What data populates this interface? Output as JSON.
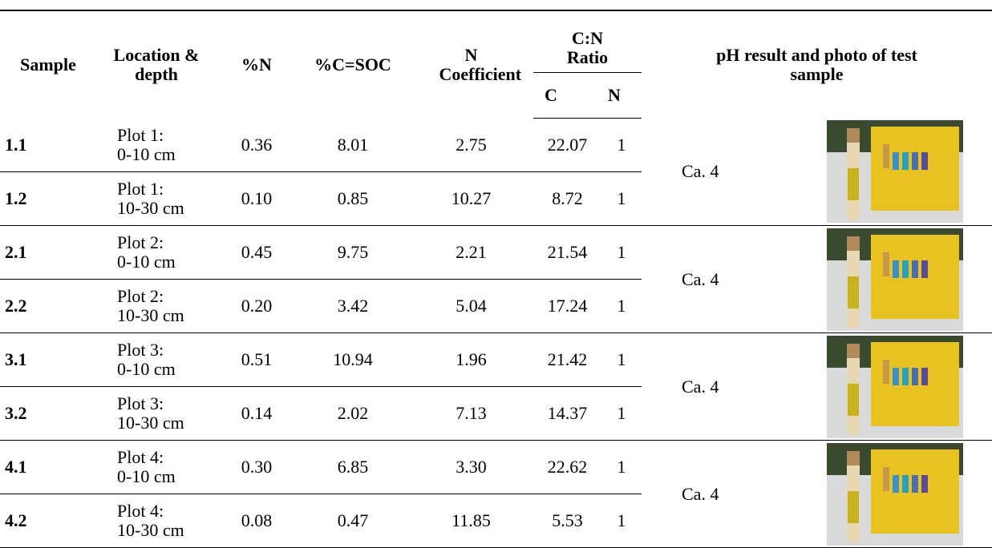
{
  "table": {
    "header": {
      "sample": "Sample",
      "location": "Location & depth",
      "n": "%N",
      "c_soc": "%C=SOC",
      "n_coefficient": "N Coefficient",
      "cn_ratio": "C:N Ratio",
      "c": "C",
      "n_ratio": "N",
      "ph": "pH result and photo of test sample"
    },
    "rows": [
      [
        "1.1",
        "Plot 1:",
        "0-10 cm",
        "0.36",
        "8.01",
        "2.75",
        "22.07",
        "1"
      ],
      [
        "1.2",
        "Plot 1:",
        "10-30 cm",
        "0.10",
        "0.85",
        "10.27",
        "8.72",
        "1"
      ],
      [
        "2.1",
        "Plot 2:",
        "0-10 cm",
        "0.45",
        "9.75",
        "2.21",
        "21.54",
        "1"
      ],
      [
        "2.2",
        "Plot 2:",
        "10-30 cm",
        "0.20",
        "3.42",
        "5.04",
        "17.24",
        "1"
      ],
      [
        "3.1",
        "Plot 3:",
        "0-10 cm",
        "0.51",
        "10.94",
        "1.96",
        "21.42",
        "1"
      ],
      [
        "3.2",
        "Plot 3:",
        "10-30 cm",
        "0.14",
        "2.02",
        "7.13",
        "14.37",
        "1"
      ],
      [
        "4.1",
        "Plot 4:",
        "0-10 cm",
        "0.30",
        "6.85",
        "3.30",
        "22.62",
        "1"
      ],
      [
        "4.2",
        "Plot 4:",
        "10-30 cm",
        "0.08",
        "0.47",
        "11.85",
        "5.53",
        "1"
      ]
    ],
    "ph": [
      "Ca. 4",
      "Ca. 4",
      "Ca. 4",
      "Ca. 4"
    ]
  }
}
